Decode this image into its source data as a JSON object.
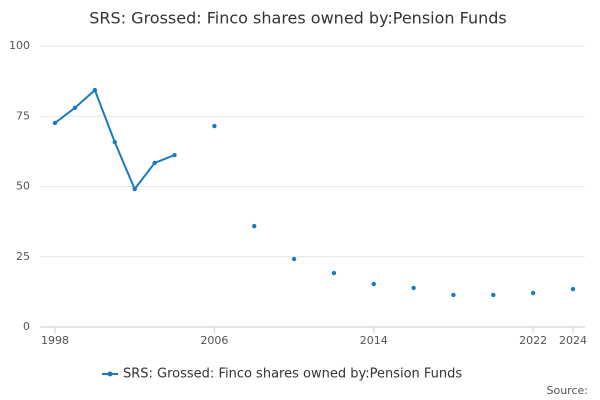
{
  "chart_data": {
    "type": "line",
    "title": "SRS: Grossed: Finco shares owned by:Pension Funds",
    "x": [
      1998,
      1999,
      2000,
      2001,
      2002,
      2003,
      2004,
      2005,
      2006,
      2007,
      2008,
      2009,
      2010,
      2011,
      2012,
      2013,
      2014,
      2015,
      2016,
      2017,
      2018,
      2019,
      2020,
      2021,
      2022,
      2023,
      2024
    ],
    "series": [
      {
        "name": "SRS: Grossed: Finco shares owned by:Pension Funds",
        "color": "#1a7bbf",
        "values": [
          72.6,
          78,
          84.3,
          65.8,
          49.1,
          58.4,
          61.2,
          null,
          71.5,
          null,
          35.9,
          null,
          24.2,
          null,
          19.2,
          null,
          15.3,
          null,
          13.9,
          null,
          11.4,
          null,
          11.4,
          null,
          12.1,
          null,
          13.5
        ]
      }
    ],
    "xlim": [
      1998,
      2024
    ],
    "xticks": [
      1998,
      2006,
      2014,
      2022,
      2024
    ],
    "ylim": [
      0,
      100
    ],
    "yticks": [
      0,
      25,
      50,
      75,
      100
    ],
    "grid": true,
    "source": "Source:"
  }
}
